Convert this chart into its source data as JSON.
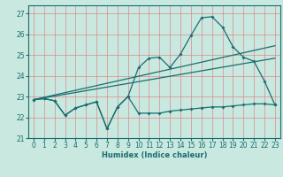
{
  "title": "",
  "xlabel": "Humidex (Indice chaleur)",
  "xlim": [
    -0.5,
    23.5
  ],
  "ylim": [
    21.0,
    27.4
  ],
  "yticks": [
    21,
    22,
    23,
    24,
    25,
    26,
    27
  ],
  "xticks": [
    0,
    1,
    2,
    3,
    4,
    5,
    6,
    7,
    8,
    9,
    10,
    11,
    12,
    13,
    14,
    15,
    16,
    17,
    18,
    19,
    20,
    21,
    22,
    23
  ],
  "bg_color": "#c8e8e0",
  "grid_color": "#e08080",
  "line_color": "#1a6e6e",
  "curve_x": [
    0,
    1,
    2,
    3,
    4,
    5,
    6,
    7,
    8,
    9,
    10,
    11,
    12,
    13,
    14,
    15,
    16,
    17,
    18,
    19,
    20,
    21,
    22,
    23
  ],
  "curve_y": [
    22.85,
    22.9,
    22.8,
    22.1,
    22.45,
    22.6,
    22.75,
    21.45,
    22.5,
    23.0,
    24.4,
    24.85,
    24.9,
    24.4,
    25.05,
    25.95,
    26.8,
    26.85,
    26.35,
    25.4,
    24.9,
    24.7,
    23.75,
    22.6
  ],
  "flat_x": [
    0,
    1,
    2,
    3,
    4,
    5,
    6,
    7,
    8,
    9,
    10,
    11,
    12,
    13,
    14,
    15,
    16,
    17,
    18,
    19,
    20,
    21,
    22,
    23
  ],
  "flat_y": [
    22.85,
    22.9,
    22.8,
    22.1,
    22.45,
    22.6,
    22.75,
    21.45,
    22.5,
    23.0,
    22.2,
    22.2,
    22.2,
    22.3,
    22.35,
    22.4,
    22.45,
    22.5,
    22.5,
    22.55,
    22.6,
    22.65,
    22.65,
    22.6
  ],
  "trend1_x": [
    0,
    23
  ],
  "trend1_y": [
    22.85,
    25.45
  ],
  "trend2_x": [
    0,
    23
  ],
  "trend2_y": [
    22.85,
    24.85
  ]
}
